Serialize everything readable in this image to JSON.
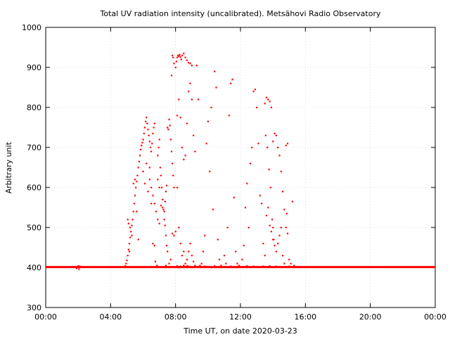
{
  "chart_data": {
    "type": "scatter",
    "title": "Total UV radiation intensity (uncalibrated). Metsähovi Radio Observatory",
    "xlabel": "Time UT, on date 2020-03-23",
    "ylabel": "Arbitrary unit",
    "xlim": [
      0,
      24
    ],
    "ylim": [
      300,
      1000
    ],
    "x_ticks": [
      0,
      4,
      8,
      12,
      16,
      20,
      24
    ],
    "x_tick_labels": [
      "00:00",
      "04:00",
      "08:00",
      "12:00",
      "16:00",
      "20:00",
      "00:00"
    ],
    "y_ticks": [
      300,
      400,
      500,
      600,
      700,
      800,
      900,
      1000
    ],
    "y_tick_labels": [
      "300",
      "400",
      "500",
      "600",
      "700",
      "800",
      "900",
      "1000"
    ],
    "grid": true,
    "marker_color": "#ff0000",
    "baseline": {
      "value": 401,
      "x_start": 0,
      "x_end": 24,
      "note": ""
    },
    "points": [
      [
        1.9,
        398
      ],
      [
        2.0,
        404
      ],
      [
        2.05,
        396
      ],
      [
        2.1,
        403
      ],
      [
        4.9,
        404
      ],
      [
        4.95,
        410
      ],
      [
        5.0,
        418
      ],
      [
        5.05,
        430
      ],
      [
        5.1,
        445
      ],
      [
        5.15,
        460
      ],
      [
        5.2,
        475
      ],
      [
        5.25,
        490
      ],
      [
        5.3,
        505
      ],
      [
        5.35,
        520
      ],
      [
        5.4,
        540
      ],
      [
        5.45,
        560
      ],
      [
        5.5,
        580
      ],
      [
        5.55,
        600
      ],
      [
        5.6,
        615
      ],
      [
        5.65,
        630
      ],
      [
        5.7,
        650
      ],
      [
        5.75,
        665
      ],
      [
        5.8,
        680
      ],
      [
        5.85,
        695
      ],
      [
        5.9,
        705
      ],
      [
        5.95,
        712
      ],
      [
        5.05,
        520
      ],
      [
        5.1,
        510
      ],
      [
        5.2,
        500
      ],
      [
        5.15,
        440
      ],
      [
        5.3,
        480
      ],
      [
        5.4,
        610
      ],
      [
        5.5,
        620
      ],
      [
        5.6,
        540
      ],
      [
        5.7,
        470
      ],
      [
        6.0,
        720
      ],
      [
        6.05,
        735
      ],
      [
        6.1,
        750
      ],
      [
        6.15,
        765
      ],
      [
        6.2,
        775
      ],
      [
        6.25,
        760
      ],
      [
        6.3,
        745
      ],
      [
        6.35,
        730
      ],
      [
        6.4,
        715
      ],
      [
        6.45,
        700
      ],
      [
        6.5,
        690
      ],
      [
        6.55,
        710
      ],
      [
        6.6,
        735
      ],
      [
        6.65,
        750
      ],
      [
        6.7,
        760
      ],
      [
        6.0,
        640
      ],
      [
        6.1,
        610
      ],
      [
        6.2,
        660
      ],
      [
        6.3,
        590
      ],
      [
        6.4,
        620
      ],
      [
        6.5,
        600
      ],
      [
        6.6,
        580
      ],
      [
        6.7,
        560
      ],
      [
        6.8,
        540
      ],
      [
        6.9,
        520
      ],
      [
        7.0,
        510
      ],
      [
        6.4,
        650
      ],
      [
        6.5,
        560
      ],
      [
        6.6,
        460
      ],
      [
        6.7,
        455
      ],
      [
        6.75,
        415
      ],
      [
        6.8,
        402
      ],
      [
        6.85,
        405
      ],
      [
        6.9,
        680
      ],
      [
        6.95,
        700
      ],
      [
        7.0,
        720
      ],
      [
        7.05,
        650
      ],
      [
        7.1,
        630
      ],
      [
        7.15,
        600
      ],
      [
        7.2,
        570
      ],
      [
        7.25,
        545
      ],
      [
        7.3,
        520
      ],
      [
        7.35,
        505
      ],
      [
        7.4,
        480
      ],
      [
        7.45,
        455
      ],
      [
        7.5,
        440
      ],
      [
        6.9,
        620
      ],
      [
        7.0,
        600
      ],
      [
        7.1,
        555
      ],
      [
        7.2,
        550
      ],
      [
        7.3,
        540
      ],
      [
        7.35,
        565
      ],
      [
        7.4,
        590
      ],
      [
        7.45,
        605
      ],
      [
        7.5,
        750
      ],
      [
        7.55,
        745
      ],
      [
        7.6,
        770
      ],
      [
        7.65,
        755
      ],
      [
        7.7,
        720
      ],
      [
        7.75,
        690
      ],
      [
        7.8,
        660
      ],
      [
        7.85,
        630
      ],
      [
        7.9,
        600
      ],
      [
        7.4,
        405
      ],
      [
        7.6,
        410
      ],
      [
        7.7,
        420
      ],
      [
        7.8,
        485
      ],
      [
        7.9,
        480
      ],
      [
        8.0,
        490
      ],
      [
        7.75,
        880
      ],
      [
        7.8,
        930
      ],
      [
        7.85,
        925
      ],
      [
        7.9,
        910
      ],
      [
        8.0,
        900
      ],
      [
        8.05,
        915
      ],
      [
        8.1,
        925
      ],
      [
        8.15,
        930
      ],
      [
        8.2,
        928
      ],
      [
        8.25,
        932
      ],
      [
        8.3,
        926
      ],
      [
        8.35,
        920
      ],
      [
        8.4,
        930
      ],
      [
        8.5,
        935
      ],
      [
        8.6,
        925
      ],
      [
        8.7,
        918
      ],
      [
        8.8,
        912
      ],
      [
        8.9,
        910
      ],
      [
        9.0,
        905
      ],
      [
        8.1,
        780
      ],
      [
        8.2,
        820
      ],
      [
        8.3,
        775
      ],
      [
        8.4,
        700
      ],
      [
        8.5,
        670
      ],
      [
        8.6,
        680
      ],
      [
        8.7,
        760
      ],
      [
        8.8,
        840
      ],
      [
        8.9,
        860
      ],
      [
        9.0,
        820
      ],
      [
        9.1,
        730
      ],
      [
        9.2,
        690
      ],
      [
        8.1,
        600
      ],
      [
        8.2,
        500
      ],
      [
        8.3,
        460
      ],
      [
        8.4,
        430
      ],
      [
        8.5,
        440
      ],
      [
        8.6,
        410
      ],
      [
        8.7,
        420
      ],
      [
        8.8,
        440
      ],
      [
        8.9,
        460
      ],
      [
        9.0,
        430
      ],
      [
        9.1,
        415
      ],
      [
        9.2,
        405
      ],
      [
        8.0,
        402
      ],
      [
        8.1,
        404
      ],
      [
        8.2,
        400
      ],
      [
        8.3,
        403
      ],
      [
        8.4,
        401
      ],
      [
        8.5,
        405
      ],
      [
        8.6,
        402
      ],
      [
        8.7,
        404
      ],
      [
        8.8,
        403
      ],
      [
        8.9,
        402
      ],
      [
        9.0,
        400
      ],
      [
        9.3,
        905
      ],
      [
        9.4,
        820
      ],
      [
        9.5,
        405
      ],
      [
        9.6,
        410
      ],
      [
        9.7,
        440
      ],
      [
        9.8,
        480
      ],
      [
        9.9,
        710
      ],
      [
        10.0,
        765
      ],
      [
        10.1,
        640
      ],
      [
        10.2,
        800
      ],
      [
        10.3,
        545
      ],
      [
        10.4,
        890
      ],
      [
        10.5,
        850
      ],
      [
        10.6,
        470
      ],
      [
        10.7,
        420
      ],
      [
        10.8,
        405
      ],
      [
        9.4,
        402
      ],
      [
        9.6,
        401
      ],
      [
        9.8,
        403
      ],
      [
        10.0,
        402
      ],
      [
        10.2,
        400
      ],
      [
        10.4,
        404
      ],
      [
        10.6,
        401
      ],
      [
        10.8,
        402
      ],
      [
        11.0,
        430
      ],
      [
        11.1,
        410
      ],
      [
        11.2,
        500
      ],
      [
        11.3,
        780
      ],
      [
        11.4,
        860
      ],
      [
        11.5,
        870
      ],
      [
        11.6,
        575
      ],
      [
        11.7,
        440
      ],
      [
        11.8,
        410
      ],
      [
        11.9,
        405
      ],
      [
        11.0,
        402
      ],
      [
        11.2,
        401
      ],
      [
        11.4,
        403
      ],
      [
        11.6,
        402
      ],
      [
        11.8,
        400
      ],
      [
        12.0,
        402
      ],
      [
        12.1,
        420
      ],
      [
        12.2,
        455
      ],
      [
        12.3,
        550
      ],
      [
        12.4,
        610
      ],
      [
        12.5,
        500
      ],
      [
        12.6,
        660
      ],
      [
        12.7,
        700
      ],
      [
        12.8,
        840
      ],
      [
        12.9,
        845
      ],
      [
        13.0,
        800
      ],
      [
        13.1,
        710
      ],
      [
        13.2,
        580
      ],
      [
        13.3,
        560
      ],
      [
        13.4,
        460
      ],
      [
        13.5,
        430
      ],
      [
        12.2,
        402
      ],
      [
        12.4,
        404
      ],
      [
        12.6,
        401
      ],
      [
        12.8,
        403
      ],
      [
        13.0,
        402
      ],
      [
        13.2,
        401
      ],
      [
        13.4,
        403
      ],
      [
        13.5,
        810
      ],
      [
        13.6,
        825
      ],
      [
        13.7,
        820
      ],
      [
        13.8,
        815
      ],
      [
        13.9,
        800
      ],
      [
        13.55,
        730
      ],
      [
        13.65,
        700
      ],
      [
        13.75,
        645
      ],
      [
        13.85,
        600
      ],
      [
        13.95,
        520
      ],
      [
        14.0,
        500
      ],
      [
        14.05,
        470
      ],
      [
        14.0,
        715
      ],
      [
        14.1,
        735
      ],
      [
        14.2,
        730
      ],
      [
        14.3,
        700
      ],
      [
        14.4,
        680
      ],
      [
        14.5,
        640
      ],
      [
        14.6,
        590
      ],
      [
        14.7,
        545
      ],
      [
        14.8,
        500
      ],
      [
        13.6,
        530
      ],
      [
        13.7,
        550
      ],
      [
        13.8,
        505
      ],
      [
        13.9,
        490
      ],
      [
        14.0,
        470
      ],
      [
        14.1,
        455
      ],
      [
        14.2,
        440
      ],
      [
        14.3,
        460
      ],
      [
        14.4,
        480
      ],
      [
        14.5,
        500
      ],
      [
        14.6,
        430
      ],
      [
        14.7,
        410
      ],
      [
        14.8,
        705
      ],
      [
        14.9,
        710
      ],
      [
        14.85,
        535
      ],
      [
        14.9,
        485
      ],
      [
        15.0,
        420
      ],
      [
        15.1,
        410
      ],
      [
        15.2,
        565
      ],
      [
        15.3,
        405
      ],
      [
        15.5,
        402
      ],
      [
        15.7,
        401
      ],
      [
        13.6,
        402
      ],
      [
        13.8,
        404
      ],
      [
        14.0,
        401
      ],
      [
        14.2,
        403
      ],
      [
        14.4,
        402
      ],
      [
        14.6,
        401
      ],
      [
        14.8,
        402
      ],
      [
        15.0,
        403
      ]
    ]
  }
}
